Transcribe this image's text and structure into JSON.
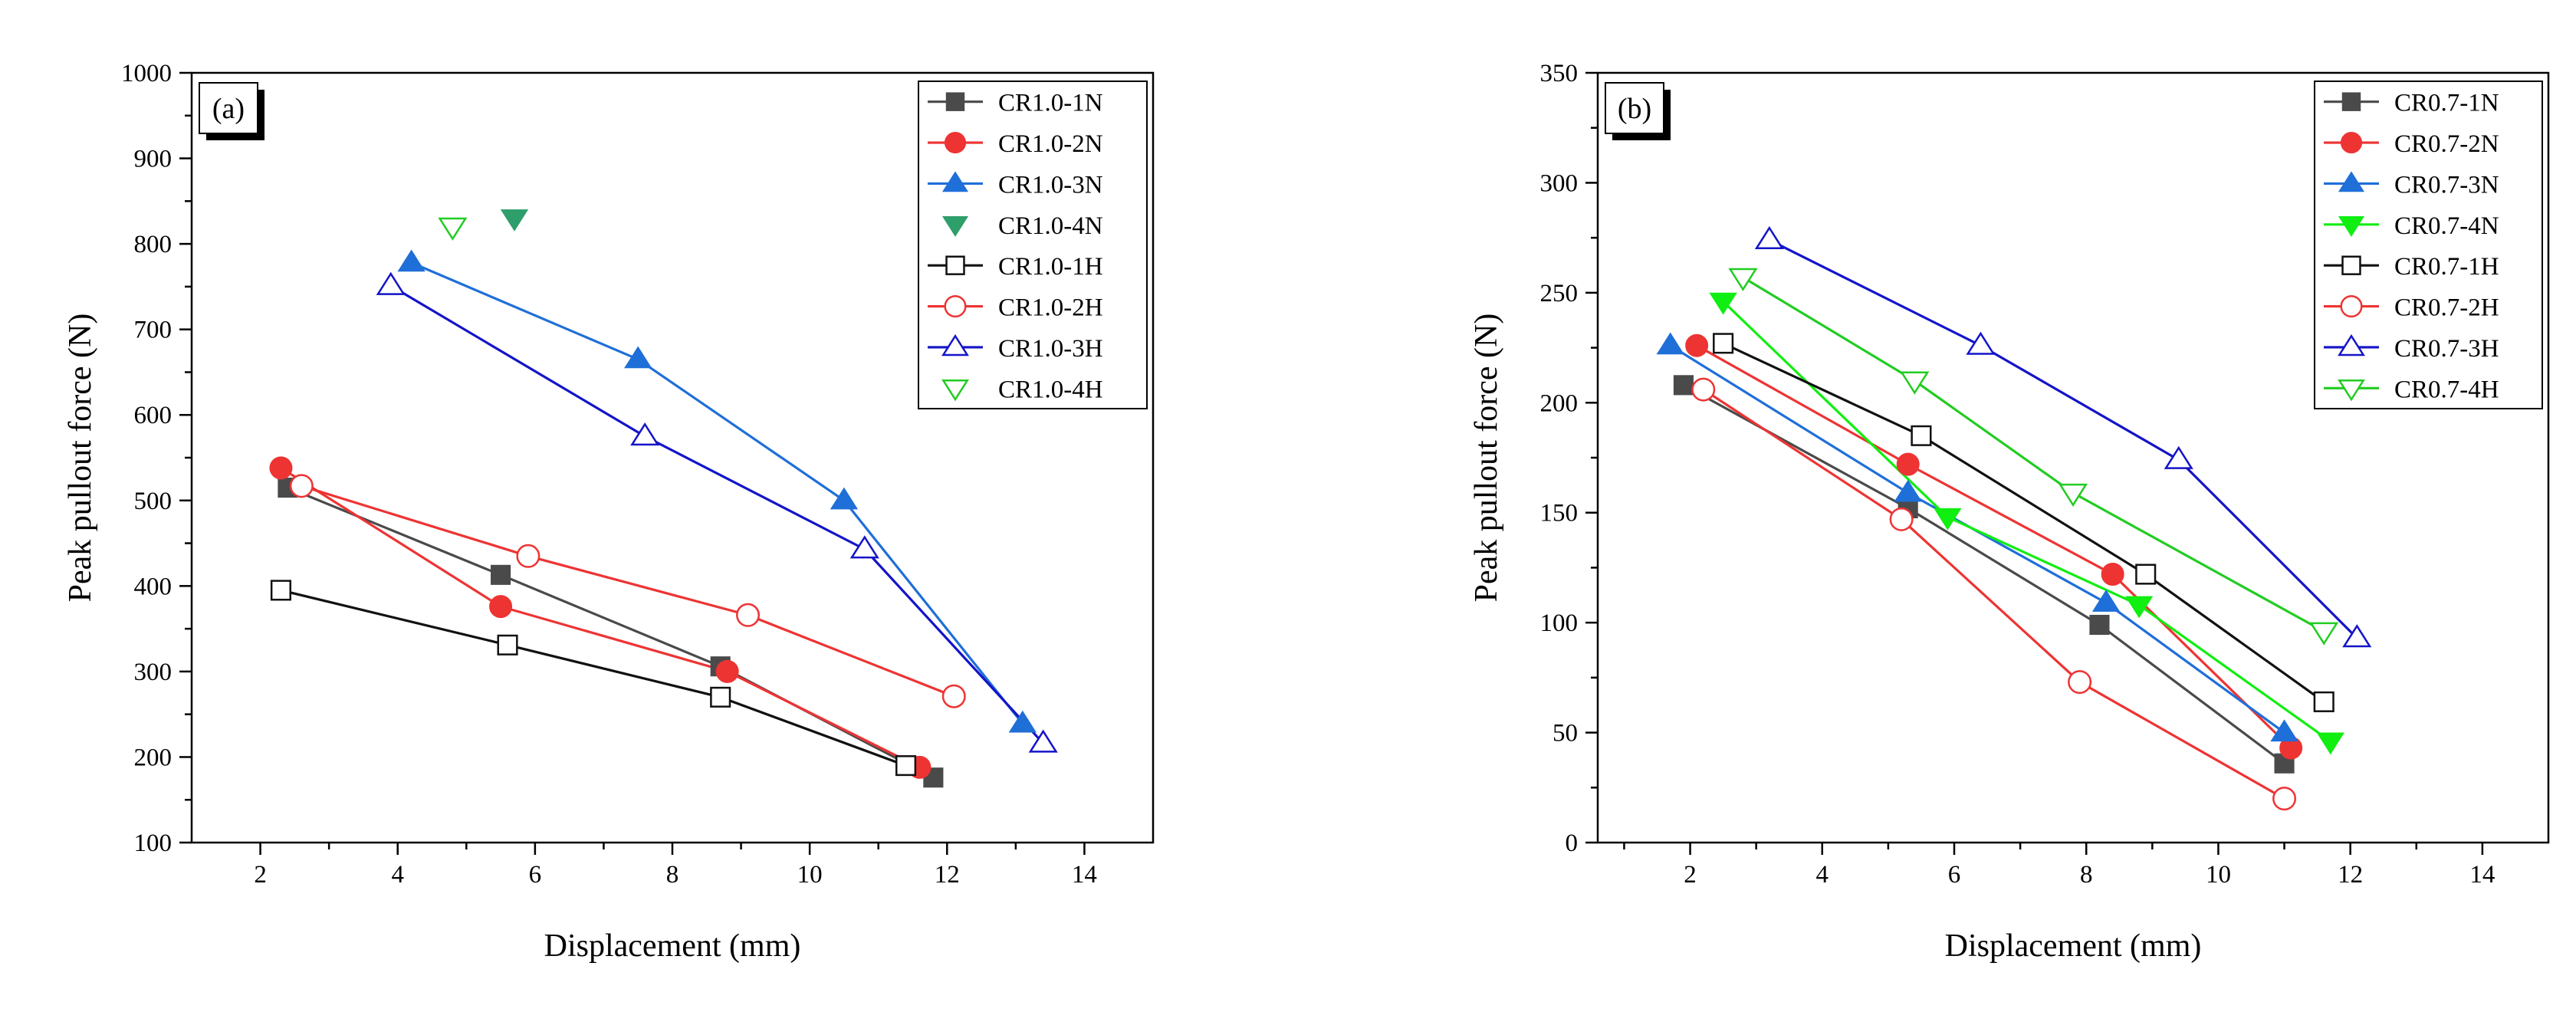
{
  "chart_data": [
    {
      "type": "line",
      "panel_label": "(a)",
      "xlabel": "Displacement (mm)",
      "ylabel": "Peak pullout force (N)",
      "xlim": [
        1,
        15
      ],
      "ylim": [
        100,
        1000
      ],
      "xticks": [
        2,
        4,
        6,
        8,
        10,
        12,
        14
      ],
      "yticks": [
        100,
        200,
        300,
        400,
        500,
        600,
        700,
        800,
        900,
        1000
      ],
      "legend_position": "top-right",
      "series": [
        {
          "name": "CR1.0-1N",
          "color": "#4a4a4a",
          "marker": "square",
          "filled": true,
          "line": true,
          "x": [
            2.4,
            5.5,
            8.7,
            11.8
          ],
          "y": [
            515,
            413,
            306,
            176
          ]
        },
        {
          "name": "CR1.0-2N",
          "color": "#ee3333",
          "marker": "circle",
          "filled": true,
          "line": true,
          "x": [
            2.3,
            5.5,
            8.8,
            11.6
          ],
          "y": [
            538,
            376,
            300,
            188
          ]
        },
        {
          "name": "CR1.0-3N",
          "color": "#1f6fd8",
          "marker": "triangle-up",
          "filled": true,
          "line": true,
          "x": [
            4.2,
            7.5,
            10.5,
            13.1
          ],
          "y": [
            778,
            665,
            500,
            239
          ]
        },
        {
          "name": "CR1.0-4N",
          "color": "#2e9e6a",
          "marker": "triangle-down",
          "filled": true,
          "line": false,
          "x": [
            5.7
          ],
          "y": [
            830
          ]
        },
        {
          "name": "CR1.0-1H",
          "color": "#111111",
          "marker": "square",
          "filled": false,
          "line": true,
          "x": [
            2.3,
            5.6,
            8.7,
            11.4
          ],
          "y": [
            395,
            331,
            270,
            190
          ]
        },
        {
          "name": "CR1.0-2H",
          "color": "#ee3333",
          "marker": "circle",
          "filled": false,
          "line": true,
          "x": [
            2.6,
            5.9,
            9.1,
            12.1
          ],
          "y": [
            517,
            435,
            366,
            271
          ]
        },
        {
          "name": "CR1.0-3H",
          "color": "#1414c8",
          "marker": "triangle-up",
          "filled": false,
          "line": true,
          "x": [
            3.9,
            7.6,
            10.8,
            13.4
          ],
          "y": [
            751,
            575,
            443,
            216
          ]
        },
        {
          "name": "CR1.0-4H",
          "color": "#22cc22",
          "marker": "triangle-down",
          "filled": false,
          "line": false,
          "x": [
            4.8
          ],
          "y": [
            820
          ]
        }
      ]
    },
    {
      "type": "line",
      "panel_label": "(b)",
      "xlabel": "Displacement (mm)",
      "ylabel": "Peak pullout force (N)",
      "xlim": [
        0.6,
        15
      ],
      "ylim": [
        0,
        350
      ],
      "xticks": [
        2,
        4,
        6,
        8,
        10,
        12,
        14
      ],
      "yticks": [
        0,
        50,
        100,
        150,
        200,
        250,
        300,
        350
      ],
      "legend_position": "top-right",
      "series": [
        {
          "name": "CR0.7-1N",
          "color": "#4a4a4a",
          "marker": "square",
          "filled": true,
          "line": true,
          "x": [
            1.9,
            5.3,
            8.2,
            11.0
          ],
          "y": [
            208,
            152,
            99,
            36
          ]
        },
        {
          "name": "CR0.7-2N",
          "color": "#ee3333",
          "marker": "circle",
          "filled": true,
          "line": true,
          "x": [
            2.1,
            5.3,
            8.4,
            11.1
          ],
          "y": [
            226,
            172,
            122,
            43
          ]
        },
        {
          "name": "CR0.7-3N",
          "color": "#1f6fd8",
          "marker": "triangle-up",
          "filled": true,
          "line": true,
          "x": [
            1.7,
            5.3,
            8.3,
            11.0
          ],
          "y": [
            226,
            159,
            109,
            50
          ]
        },
        {
          "name": "CR0.7-4N",
          "color": "#11ee11",
          "marker": "triangle-down",
          "filled": true,
          "line": true,
          "x": [
            2.5,
            5.9,
            8.8,
            11.7
          ],
          "y": [
            246,
            148,
            108,
            46
          ]
        },
        {
          "name": "CR0.7-1H",
          "color": "#111111",
          "marker": "square",
          "filled": false,
          "line": true,
          "x": [
            2.5,
            5.5,
            8.9,
            11.6
          ],
          "y": [
            227,
            185,
            122,
            64
          ]
        },
        {
          "name": "CR0.7-2H",
          "color": "#ee3333",
          "marker": "circle",
          "filled": false,
          "line": true,
          "x": [
            2.2,
            5.2,
            7.9,
            11.0
          ],
          "y": [
            206,
            147,
            73,
            20
          ]
        },
        {
          "name": "CR0.7-3H",
          "color": "#1414c8",
          "marker": "triangle-up",
          "filled": false,
          "line": true,
          "x": [
            3.2,
            6.4,
            9.4,
            12.1
          ],
          "y": [
            274,
            226,
            174,
            93
          ]
        },
        {
          "name": "CR0.7-4H",
          "color": "#22cc22",
          "marker": "triangle-down",
          "filled": false,
          "line": true,
          "x": [
            2.8,
            5.4,
            7.8,
            11.6
          ],
          "y": [
            257,
            210,
            159,
            96
          ]
        }
      ]
    }
  ]
}
